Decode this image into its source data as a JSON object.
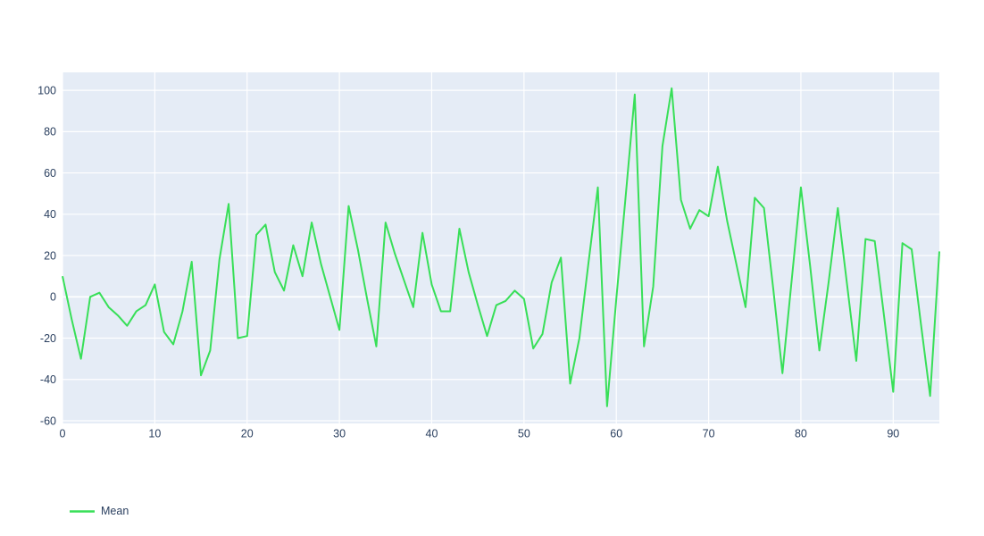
{
  "chart_data": {
    "type": "line",
    "title": "",
    "xlabel": "",
    "ylabel": "",
    "grid": true,
    "legend_position": "bottom-left",
    "plot_bgcolor": "#e5ecf6",
    "paper_bgcolor": "#ffffff",
    "grid_color": "#ffffff",
    "tick_color": "#2a3f5f",
    "x_ticks": [
      0,
      10,
      20,
      30,
      40,
      50,
      60,
      70,
      80,
      90
    ],
    "y_ticks": [
      -60,
      -40,
      -20,
      0,
      20,
      40,
      60,
      80,
      100
    ],
    "x_range": [
      0,
      95
    ],
    "y_range": [
      -61.3,
      108.7
    ],
    "x": [
      0,
      1,
      2,
      3,
      4,
      5,
      6,
      7,
      8,
      9,
      10,
      11,
      12,
      13,
      14,
      15,
      16,
      17,
      18,
      19,
      20,
      21,
      22,
      23,
      24,
      25,
      26,
      27,
      28,
      29,
      30,
      31,
      32,
      33,
      34,
      35,
      36,
      37,
      38,
      39,
      40,
      41,
      42,
      43,
      44,
      45,
      46,
      47,
      48,
      49,
      50,
      51,
      52,
      53,
      54,
      55,
      56,
      57,
      58,
      59,
      60,
      61,
      62,
      63,
      64,
      65,
      66,
      67,
      68,
      69,
      70,
      71,
      72,
      73,
      74,
      75,
      76,
      77,
      78,
      79,
      80,
      81,
      82,
      83,
      84,
      85,
      86,
      87,
      88,
      89,
      90,
      91,
      92,
      93,
      94,
      95
    ],
    "series": [
      {
        "name": "Mean",
        "color": "#38df58",
        "line_width": 2,
        "values": [
          10,
          -11,
          -30,
          0,
          2,
          -5,
          -9,
          -14,
          -7,
          -4,
          6,
          -17,
          -23,
          -7,
          17,
          -38,
          -26,
          18,
          45,
          -20,
          -19,
          30,
          35,
          12,
          3,
          25,
          10,
          36,
          16,
          0,
          -16,
          44,
          23,
          -1,
          -24,
          36,
          21,
          8,
          -5,
          31,
          6,
          -7,
          -7,
          33,
          12,
          -4,
          -19,
          -4,
          -2,
          3,
          -1,
          -25,
          -18,
          7,
          19,
          -42,
          -20,
          17,
          53,
          -53,
          -1,
          48,
          98,
          -24,
          5,
          73,
          101,
          47,
          33,
          42,
          39,
          63,
          37,
          16,
          -5,
          48,
          43,
          4,
          -37,
          8,
          53,
          15,
          -26,
          7,
          43,
          6,
          -31,
          28,
          27,
          -9,
          -46,
          26,
          23,
          -13,
          -48,
          22
        ]
      }
    ]
  }
}
